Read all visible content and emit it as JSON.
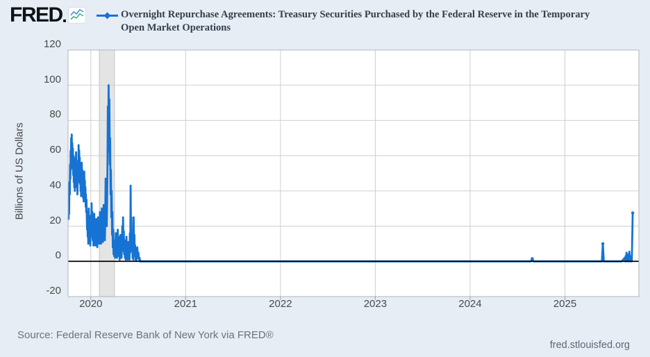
{
  "header": {
    "logo_text": "FRED"
  },
  "icons": {
    "logo_badge": "line-chart-icon",
    "legend_marker": "diamond-line-marker"
  },
  "footer": {
    "source": "Source: Federal Reserve Bank of New York via FRED®",
    "site": "fred.stlouisfed.org"
  },
  "chart_data": {
    "type": "line",
    "title": "Overnight Repurchase Agreements: Treasury Securities Purchased by the Federal Reserve in the Temporary Open Market Operations",
    "xlabel": "",
    "ylabel": "Billions of US Dollars",
    "units": "Billions of US Dollars",
    "ylim": [
      -20,
      120
    ],
    "xlim": [
      2019.76,
      2025.78
    ],
    "y_ticks": [
      -20,
      0,
      20,
      40,
      60,
      80,
      100,
      120
    ],
    "x_ticks": [
      2020,
      2021,
      2022,
      2023,
      2024,
      2025
    ],
    "grid": true,
    "legend_position": "top",
    "line_color": "#1673d3",
    "zero_line_color": "#000000",
    "grid_color": "#cfcfcf",
    "border_color": "#b2b5b9",
    "plot_bg": "#ffffff",
    "recession_band": {
      "start": 2020.09,
      "end": 2020.25,
      "fill": "#e4e4e4",
      "edge": "#c4c4c4",
      "label": "recession-shading-feb2020-apr2020"
    },
    "series": [
      {
        "name": "Overnight Repurchase Agreements: Treasury Securities Purchased by the Federal Reserve in the Temporary Open Market Operations",
        "points": [
          [
            2019.765,
            24
          ],
          [
            2019.768,
            32
          ],
          [
            2019.771,
            27
          ],
          [
            2019.775,
            45
          ],
          [
            2019.778,
            38
          ],
          [
            2019.781,
            55
          ],
          [
            2019.784,
            47
          ],
          [
            2019.787,
            63
          ],
          [
            2019.79,
            52
          ],
          [
            2019.793,
            70
          ],
          [
            2019.796,
            58
          ],
          [
            2019.799,
            72
          ],
          [
            2019.802,
            60
          ],
          [
            2019.805,
            67
          ],
          [
            2019.808,
            53
          ],
          [
            2019.811,
            64
          ],
          [
            2019.814,
            49
          ],
          [
            2019.817,
            60
          ],
          [
            2019.82,
            45
          ],
          [
            2019.823,
            57
          ],
          [
            2019.826,
            42
          ],
          [
            2019.829,
            54
          ],
          [
            2019.832,
            40
          ],
          [
            2019.835,
            52
          ],
          [
            2019.838,
            59
          ],
          [
            2019.841,
            46
          ],
          [
            2019.844,
            62
          ],
          [
            2019.847,
            48
          ],
          [
            2019.85,
            56
          ],
          [
            2019.853,
            42
          ],
          [
            2019.856,
            51
          ],
          [
            2019.859,
            38
          ],
          [
            2019.862,
            48
          ],
          [
            2019.865,
            57
          ],
          [
            2019.868,
            45
          ],
          [
            2019.871,
            66
          ],
          [
            2019.874,
            52
          ],
          [
            2019.877,
            63
          ],
          [
            2019.88,
            48
          ],
          [
            2019.883,
            59
          ],
          [
            2019.886,
            44
          ],
          [
            2019.889,
            54
          ],
          [
            2019.892,
            40
          ],
          [
            2019.895,
            50
          ],
          [
            2019.898,
            37
          ],
          [
            2019.901,
            46
          ],
          [
            2019.904,
            56
          ],
          [
            2019.907,
            43
          ],
          [
            2019.91,
            52
          ],
          [
            2019.913,
            39
          ],
          [
            2019.916,
            48
          ],
          [
            2019.919,
            36
          ],
          [
            2019.922,
            44
          ],
          [
            2019.925,
            34
          ],
          [
            2019.928,
            42
          ],
          [
            2019.931,
            51
          ],
          [
            2019.934,
            38
          ],
          [
            2019.937,
            46
          ],
          [
            2019.94,
            35
          ],
          [
            2019.943,
            42
          ],
          [
            2019.946,
            31
          ],
          [
            2019.949,
            38
          ],
          [
            2019.952,
            28
          ],
          [
            2019.955,
            35
          ],
          [
            2019.958,
            25
          ],
          [
            2019.961,
            18
          ],
          [
            2019.964,
            28
          ],
          [
            2019.967,
            14
          ],
          [
            2019.97,
            22
          ],
          [
            2019.973,
            10
          ],
          [
            2019.976,
            20
          ],
          [
            2019.979,
            30
          ],
          [
            2019.982,
            16
          ],
          [
            2019.985,
            24
          ],
          [
            2019.988,
            12
          ],
          [
            2019.991,
            20
          ],
          [
            2019.994,
            9
          ],
          [
            2019.997,
            16
          ],
          [
            2020.0,
            26
          ],
          [
            2020.004,
            14
          ],
          [
            2020.008,
            33
          ],
          [
            2020.012,
            20
          ],
          [
            2020.016,
            28
          ],
          [
            2020.02,
            12
          ],
          [
            2020.024,
            22
          ],
          [
            2020.028,
            9
          ],
          [
            2020.032,
            18
          ],
          [
            2020.036,
            27
          ],
          [
            2020.04,
            13
          ],
          [
            2020.044,
            21
          ],
          [
            2020.048,
            9
          ],
          [
            2020.052,
            15
          ],
          [
            2020.056,
            24
          ],
          [
            2020.06,
            11
          ],
          [
            2020.064,
            19
          ],
          [
            2020.068,
            8
          ],
          [
            2020.072,
            16
          ],
          [
            2020.076,
            25
          ],
          [
            2020.08,
            12
          ],
          [
            2020.084,
            20
          ],
          [
            2020.088,
            10
          ],
          [
            2020.092,
            18
          ],
          [
            2020.096,
            28
          ],
          [
            2020.1,
            14
          ],
          [
            2020.104,
            24
          ],
          [
            2020.108,
            10
          ],
          [
            2020.112,
            20
          ],
          [
            2020.116,
            30
          ],
          [
            2020.12,
            15
          ],
          [
            2020.124,
            25
          ],
          [
            2020.128,
            11
          ],
          [
            2020.132,
            22
          ],
          [
            2020.136,
            32
          ],
          [
            2020.14,
            16
          ],
          [
            2020.144,
            26
          ],
          [
            2020.148,
            12
          ],
          [
            2020.152,
            22
          ],
          [
            2020.156,
            47
          ],
          [
            2020.16,
            28
          ],
          [
            2020.164,
            40
          ],
          [
            2020.168,
            20
          ],
          [
            2020.172,
            35
          ],
          [
            2020.176,
            55
          ],
          [
            2020.18,
            88
          ],
          [
            2020.184,
            62
          ],
          [
            2020.188,
            100
          ],
          [
            2020.192,
            78
          ],
          [
            2020.196,
            92
          ],
          [
            2020.2,
            55
          ],
          [
            2020.204,
            70
          ],
          [
            2020.208,
            38
          ],
          [
            2020.212,
            52
          ],
          [
            2020.216,
            25
          ],
          [
            2020.22,
            40
          ],
          [
            2020.224,
            15
          ],
          [
            2020.228,
            28
          ],
          [
            2020.232,
            8
          ],
          [
            2020.236,
            18
          ],
          [
            2020.24,
            4
          ],
          [
            2020.244,
            12
          ],
          [
            2020.248,
            3
          ],
          [
            2020.252,
            10
          ],
          [
            2020.256,
            2
          ],
          [
            2020.26,
            8
          ],
          [
            2020.264,
            16
          ],
          [
            2020.268,
            5
          ],
          [
            2020.272,
            12
          ],
          [
            2020.276,
            2
          ],
          [
            2020.28,
            9
          ],
          [
            2020.284,
            18
          ],
          [
            2020.288,
            6
          ],
          [
            2020.292,
            14
          ],
          [
            2020.296,
            3
          ],
          [
            2020.3,
            10
          ],
          [
            2020.304,
            1
          ],
          [
            2020.308,
            7
          ],
          [
            2020.312,
            15
          ],
          [
            2020.316,
            4
          ],
          [
            2020.32,
            11
          ],
          [
            2020.324,
            2
          ],
          [
            2020.328,
            8
          ],
          [
            2020.332,
            20
          ],
          [
            2020.336,
            6
          ],
          [
            2020.34,
            25
          ],
          [
            2020.344,
            10
          ],
          [
            2020.348,
            17
          ],
          [
            2020.352,
            4
          ],
          [
            2020.356,
            12
          ],
          [
            2020.36,
            2
          ],
          [
            2020.364,
            8
          ],
          [
            2020.368,
            1
          ],
          [
            2020.372,
            6
          ],
          [
            2020.376,
            14
          ],
          [
            2020.38,
            3
          ],
          [
            2020.384,
            9
          ],
          [
            2020.388,
            1
          ],
          [
            2020.392,
            5
          ],
          [
            2020.396,
            11
          ],
          [
            2020.4,
            2
          ],
          [
            2020.404,
            7
          ],
          [
            2020.408,
            1
          ],
          [
            2020.412,
            16
          ],
          [
            2020.416,
            5
          ],
          [
            2020.42,
            43
          ],
          [
            2020.424,
            12
          ],
          [
            2020.428,
            25
          ],
          [
            2020.432,
            6
          ],
          [
            2020.436,
            14
          ],
          [
            2020.44,
            2
          ],
          [
            2020.444,
            8
          ],
          [
            2020.448,
            1
          ],
          [
            2020.452,
            25
          ],
          [
            2020.456,
            8
          ],
          [
            2020.46,
            15
          ],
          [
            2020.464,
            3
          ],
          [
            2020.468,
            9
          ],
          [
            2020.472,
            1
          ],
          [
            2020.476,
            5
          ],
          [
            2020.48,
            0.5
          ],
          [
            2020.484,
            3
          ],
          [
            2020.49,
            8
          ],
          [
            2020.496,
            2
          ],
          [
            2020.502,
            5
          ],
          [
            2020.508,
            1
          ],
          [
            2020.514,
            2
          ],
          [
            2020.52,
            0
          ],
          [
            2021.0,
            0
          ],
          [
            2022.0,
            0
          ],
          [
            2023.0,
            0
          ],
          [
            2024.0,
            0
          ],
          [
            2024.64,
            0
          ],
          [
            2024.655,
            1.5
          ],
          [
            2024.67,
            0
          ],
          [
            2025.0,
            0
          ],
          [
            2025.39,
            0
          ],
          [
            2025.4,
            10
          ],
          [
            2025.41,
            0
          ],
          [
            2025.6,
            0
          ],
          [
            2025.63,
            2
          ],
          [
            2025.635,
            0
          ],
          [
            2025.64,
            3
          ],
          [
            2025.645,
            0
          ],
          [
            2025.65,
            5
          ],
          [
            2025.655,
            0.5
          ],
          [
            2025.66,
            4
          ],
          [
            2025.665,
            0
          ],
          [
            2025.67,
            2.5
          ],
          [
            2025.675,
            0
          ],
          [
            2025.68,
            5.5
          ],
          [
            2025.685,
            1
          ],
          [
            2025.69,
            3
          ],
          [
            2025.695,
            0
          ],
          [
            2025.7,
            2
          ],
          [
            2025.705,
            0
          ],
          [
            2025.715,
            27.5
          ]
        ]
      }
    ],
    "dot_points": [
      [
        2024.655,
        1.5
      ],
      [
        2025.4,
        10
      ],
      [
        2025.715,
        27.5
      ]
    ]
  }
}
